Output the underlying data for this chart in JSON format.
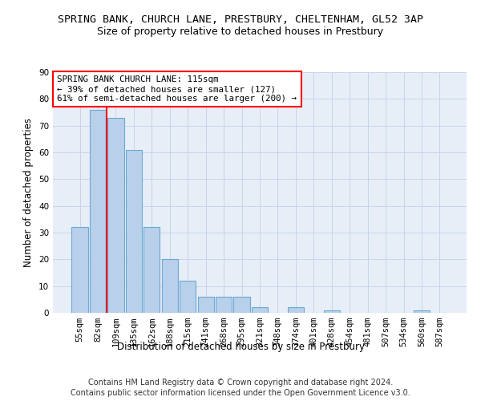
{
  "title1": "SPRING BANK, CHURCH LANE, PRESTBURY, CHELTENHAM, GL52 3AP",
  "title2": "Size of property relative to detached houses in Prestbury",
  "xlabel": "Distribution of detached houses by size in Prestbury",
  "ylabel": "Number of detached properties",
  "footer1": "Contains HM Land Registry data © Crown copyright and database right 2024.",
  "footer2": "Contains public sector information licensed under the Open Government Licence v3.0.",
  "annotation_title": "SPRING BANK CHURCH LANE: 115sqm",
  "annotation_line1": "← 39% of detached houses are smaller (127)",
  "annotation_line2": "61% of semi-detached houses are larger (200) →",
  "bar_labels": [
    "55sqm",
    "82sqm",
    "109sqm",
    "135sqm",
    "162sqm",
    "188sqm",
    "215sqm",
    "241sqm",
    "268sqm",
    "295sqm",
    "321sqm",
    "348sqm",
    "374sqm",
    "401sqm",
    "428sqm",
    "454sqm",
    "481sqm",
    "507sqm",
    "534sqm",
    "560sqm",
    "587sqm"
  ],
  "bar_values": [
    32,
    76,
    73,
    61,
    32,
    20,
    12,
    6,
    6,
    6,
    2,
    0,
    2,
    0,
    1,
    0,
    0,
    0,
    0,
    1,
    0
  ],
  "bar_color": "#b8d0ea",
  "bar_edge_color": "#6aaad4",
  "red_line_index": 2,
  "ylim": [
    0,
    90
  ],
  "yticks": [
    0,
    10,
    20,
    30,
    40,
    50,
    60,
    70,
    80,
    90
  ],
  "grid_color": "#c8d4e8",
  "background_color": "#e8eef8",
  "title1_fontsize": 9.5,
  "title2_fontsize": 9,
  "axis_fontsize": 8.5,
  "tick_fontsize": 7.5,
  "footer_fontsize": 7,
  "annotation_fontsize": 7.8
}
